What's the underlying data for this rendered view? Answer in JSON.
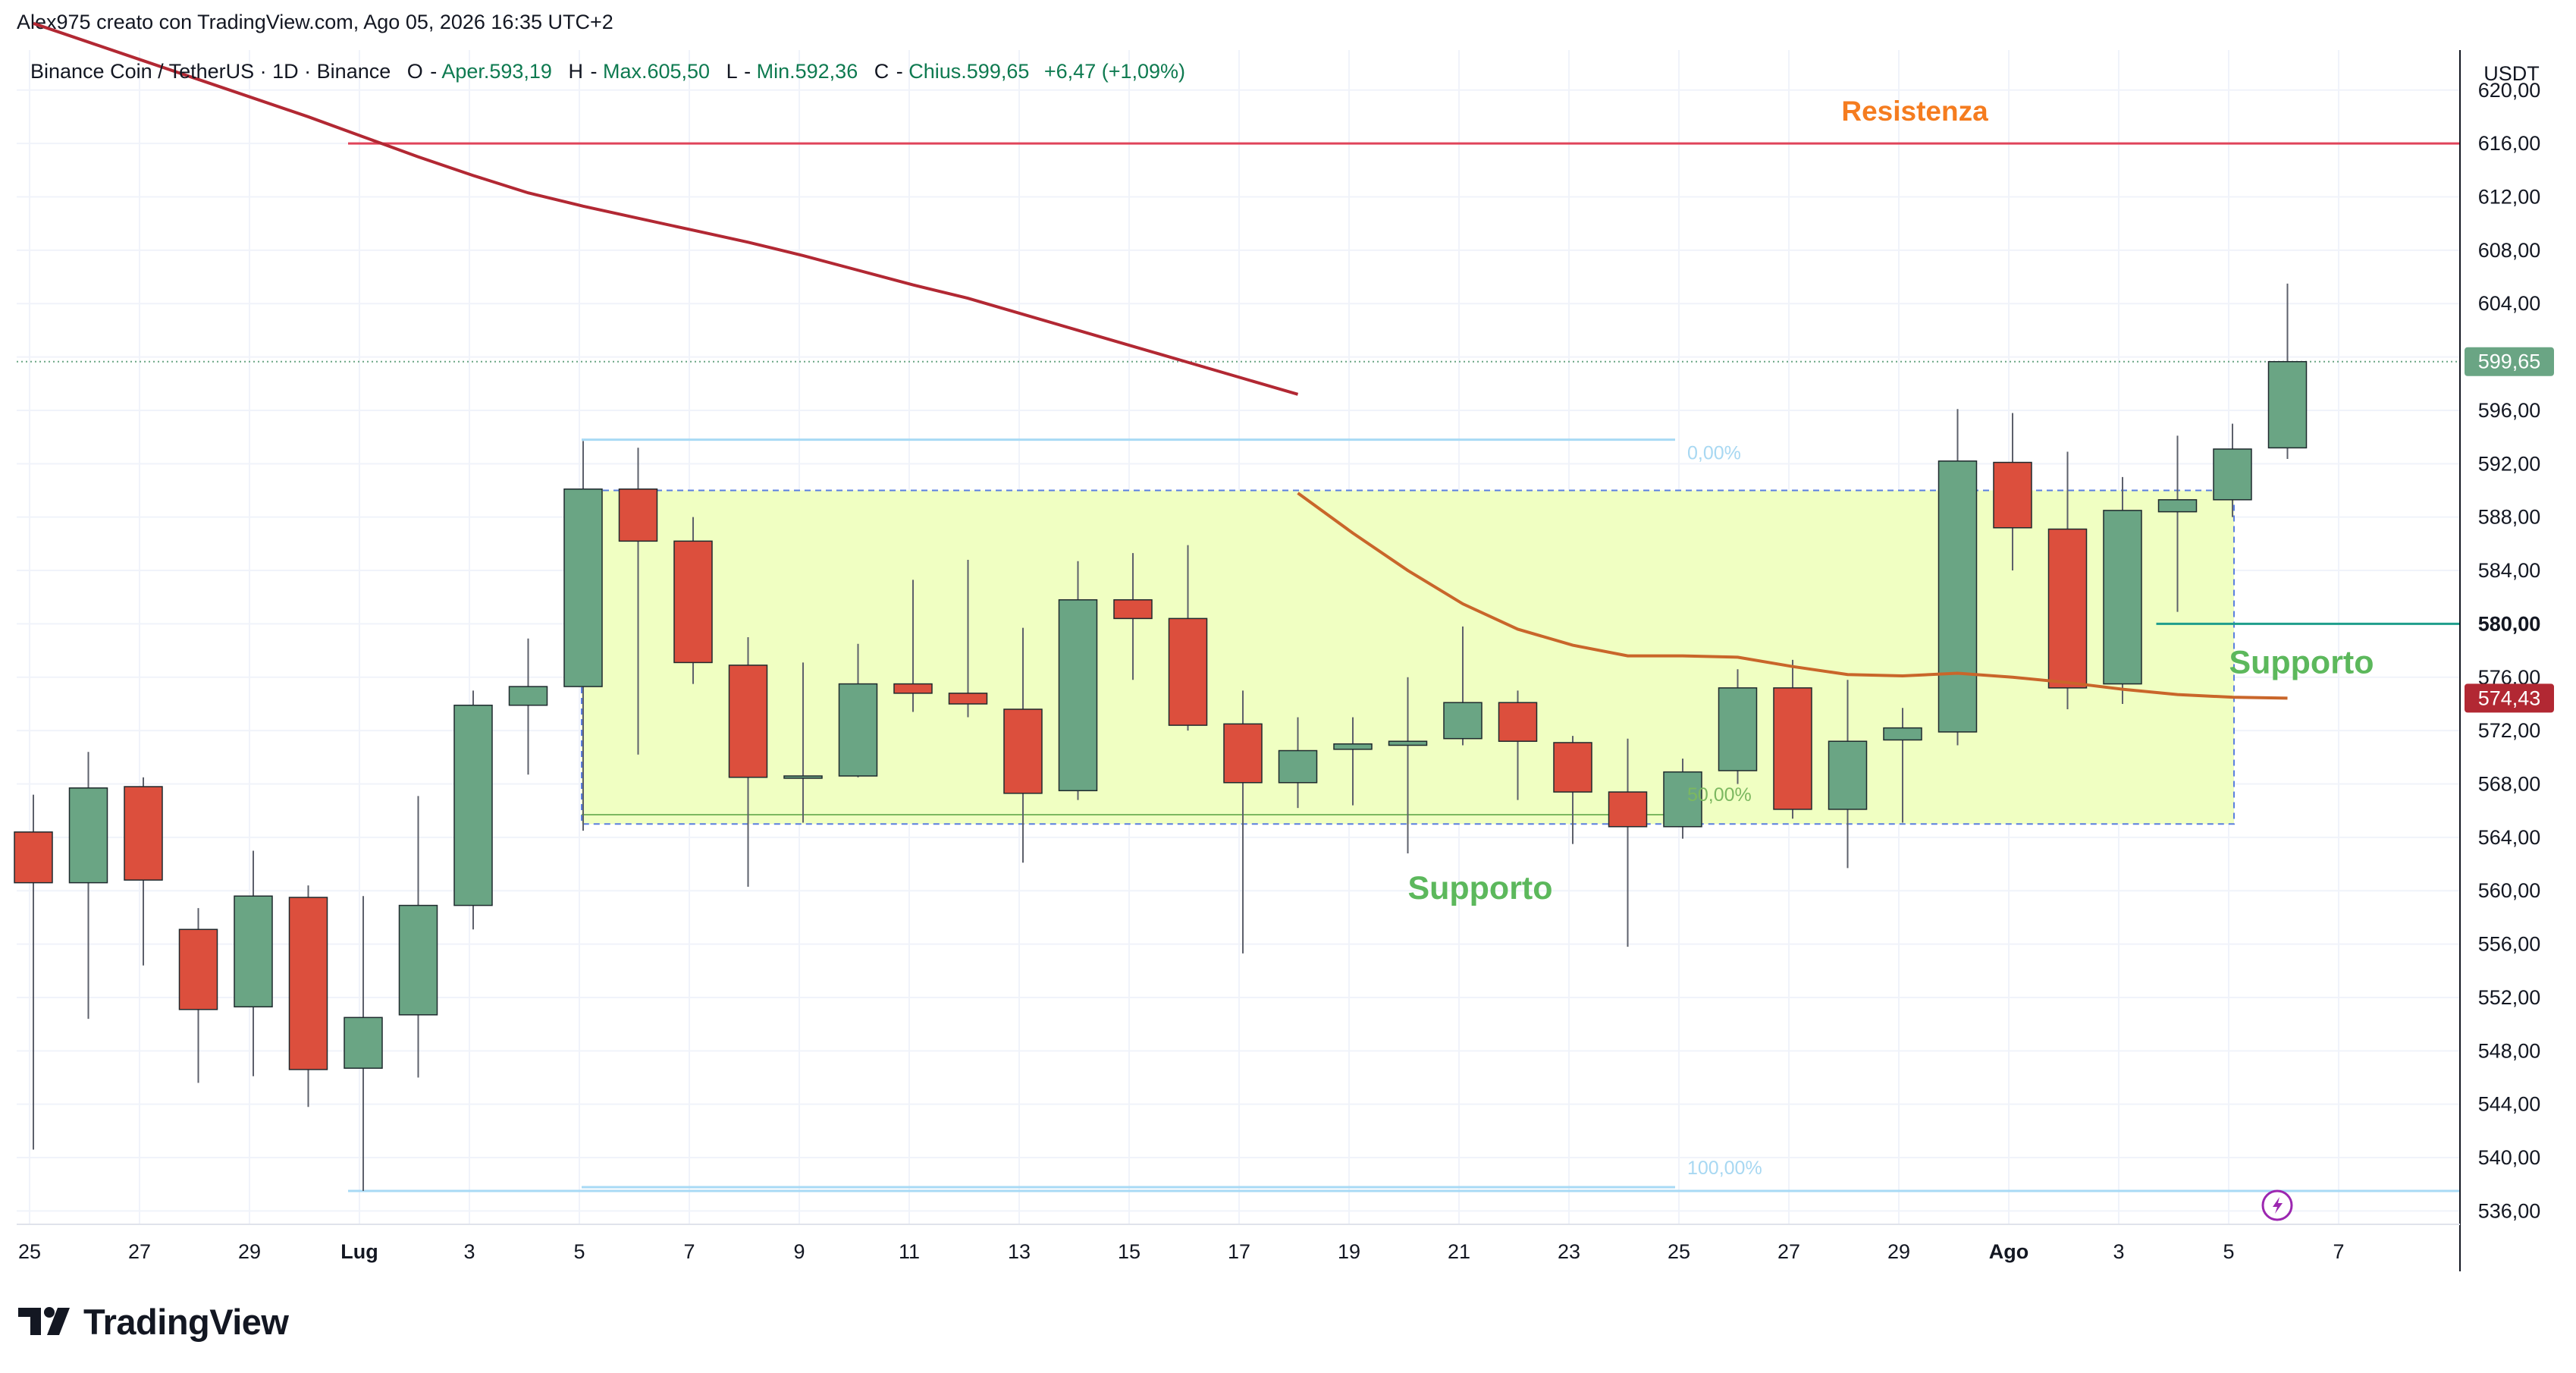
{
  "caption": "Alex975 creato con TradingView.com, Ago 05, 2026 16:35 UTC+2",
  "legend": {
    "symbol": "Binance Coin / TetherUS · 1D · Binance",
    "open_label": "O",
    "open_text": "Aper.593,19",
    "high_label": "H",
    "high_text": "Max.605,50",
    "low_label": "L",
    "low_text": "Min.592,36",
    "close_label": "C",
    "close_text": "Chius.599,65",
    "change_text": "+6,47 (+1,09%)"
  },
  "price_scale": {
    "currency": "USDT",
    "ticks": [
      "620,00",
      "616,00",
      "612,00",
      "608,00",
      "604,00",
      "600,00",
      "596,00",
      "592,00",
      "588,00",
      "584,00",
      "580,00",
      "576,00",
      "572,00",
      "568,00",
      "564,00",
      "560,00",
      "556,00",
      "552,00",
      "548,00",
      "544,00",
      "540,00",
      "536,00"
    ]
  },
  "time_scale": {
    "labels": [
      "25",
      "27",
      "29",
      "Lug",
      "3",
      "5",
      "7",
      "9",
      "11",
      "13",
      "15",
      "17",
      "19",
      "21",
      "23",
      "25",
      "27",
      "29",
      "Ago",
      "3",
      "5",
      "7"
    ]
  },
  "badges": {
    "last_price": "599,65",
    "ma_value": "574,43",
    "support_level": "580,00"
  },
  "annotations": {
    "resistance": "Resistenza",
    "support_low": "Supporto",
    "support_right": "Supporto",
    "fib_0": "0,00%",
    "fib_50": "50,00%",
    "fib_100": "100,00%"
  },
  "brand": "TradingView",
  "colors": {
    "up": "#6aa584",
    "down": "#dc4f3d",
    "wick": "#5d606b",
    "ma": "#b22833",
    "ma_tail": "#c9662a",
    "resistance_line": "#e0445a",
    "resistance_text": "#f57c1f",
    "support_text": "#5cb85c",
    "zone_fill": "#f0ffc2",
    "zone_border": "#5a7fe0",
    "fib_line": "#a8daf5",
    "support_line": "#1e9e8c",
    "last_price_bg": "#6aa584",
    "ma_badge_bg": "#b22833"
  },
  "chart_data": {
    "type": "candlestick",
    "title": "Binance Coin / TetherUS · 1D · Binance",
    "x": [
      "Giu 25",
      "Giu 26",
      "Giu 27",
      "Giu 28",
      "Giu 29",
      "Giu 30",
      "Lug 1",
      "Lug 2",
      "Lug 3",
      "Lug 4",
      "Lug 5",
      "Lug 6",
      "Lug 7",
      "Lug 8",
      "Lug 9",
      "Lug 10",
      "Lug 11",
      "Lug 12",
      "Lug 13",
      "Lug 14",
      "Lug 15",
      "Lug 16",
      "Lug 17",
      "Lug 18",
      "Lug 19",
      "Lug 20",
      "Lug 21",
      "Lug 22",
      "Lug 23",
      "Lug 24",
      "Lug 25",
      "Lug 26",
      "Lug 27",
      "Lug 28",
      "Lug 29",
      "Lug 30",
      "Lug 31",
      "Ago 1",
      "Ago 2",
      "Ago 3",
      "Ago 4",
      "Ago 5"
    ],
    "series": [
      {
        "values": [
          [
            564.4,
            567.2,
            540.6,
            560.6
          ],
          [
            560.6,
            570.4,
            550.4,
            567.7
          ],
          [
            567.8,
            568.5,
            554.4,
            560.8
          ],
          [
            557.1,
            558.7,
            545.6,
            551.1
          ],
          [
            551.3,
            563.0,
            546.1,
            559.6
          ],
          [
            559.5,
            560.4,
            543.8,
            546.6
          ],
          [
            546.7,
            559.6,
            537.5,
            550.5
          ],
          [
            550.7,
            567.1,
            546.0,
            558.9
          ],
          [
            558.9,
            575.0,
            557.1,
            573.9
          ],
          [
            573.9,
            578.9,
            568.7,
            575.3
          ],
          [
            575.3,
            593.7,
            564.5,
            590.1
          ],
          [
            590.1,
            593.2,
            570.2,
            586.2
          ],
          [
            586.2,
            588.0,
            575.5,
            577.1
          ],
          [
            576.9,
            579.0,
            560.3,
            568.5
          ],
          [
            568.6,
            577.1,
            565.1,
            568.6
          ],
          [
            568.6,
            578.5,
            568.5,
            575.5
          ],
          [
            575.5,
            583.3,
            573.4,
            574.8
          ],
          [
            574.8,
            584.8,
            573.0,
            574.0
          ],
          [
            573.6,
            579.7,
            562.1,
            567.3
          ],
          [
            567.5,
            584.7,
            566.8,
            581.8
          ],
          [
            581.8,
            585.3,
            575.8,
            580.4
          ],
          [
            580.4,
            585.9,
            572.0,
            572.4
          ],
          [
            572.5,
            575.0,
            555.3,
            568.1
          ],
          [
            568.1,
            573.0,
            566.2,
            570.5
          ],
          [
            570.6,
            573.0,
            566.4,
            571.0
          ],
          [
            570.9,
            576.0,
            562.8,
            571.2
          ],
          [
            571.4,
            579.8,
            570.9,
            574.1
          ],
          [
            574.1,
            575.0,
            566.8,
            571.2
          ],
          [
            571.1,
            571.6,
            563.5,
            567.4
          ],
          [
            567.4,
            571.4,
            555.8,
            564.8
          ],
          [
            564.8,
            569.9,
            563.9,
            568.9
          ],
          [
            569.0,
            576.6,
            568.0,
            575.2
          ],
          [
            575.2,
            577.3,
            565.4,
            566.1
          ],
          [
            566.1,
            575.8,
            561.7,
            571.2
          ],
          [
            571.3,
            573.7,
            565.1,
            572.2
          ],
          [
            571.9,
            596.1,
            570.9,
            592.2
          ],
          [
            592.1,
            595.8,
            584.0,
            587.2
          ],
          [
            587.1,
            592.9,
            573.6,
            575.2
          ],
          [
            575.5,
            591.0,
            574.0,
            588.5
          ],
          [
            588.4,
            594.1,
            580.9,
            589.3
          ],
          [
            589.3,
            595.0,
            588.0,
            593.1
          ],
          [
            593.19,
            605.5,
            592.36,
            599.65
          ]
        ]
      },
      {
        "values": [
          625.0,
          623.6,
          622.2,
          620.8,
          619.4,
          618.0,
          616.5,
          615.0,
          613.6,
          612.3,
          611.3,
          610.4,
          609.5,
          608.6,
          607.6,
          606.5,
          605.4,
          604.4,
          603.2,
          602.0,
          600.8,
          599.6,
          598.4,
          597.2,
          594.6,
          592.1,
          589.6,
          587.2,
          586.2,
          585.4,
          585.4,
          585.1,
          584.6,
          584.1,
          583.5,
          583.0,
          582.4,
          581.8,
          581.2,
          580.6,
          580.0,
          579.5
        ]
      },
      {
        "values": [
          null,
          null,
          null,
          null,
          null,
          null,
          null,
          null,
          null,
          null,
          null,
          null,
          null,
          null,
          null,
          null,
          null,
          null,
          null,
          null,
          null,
          null,
          null,
          589.8,
          586.8,
          584.0,
          581.5,
          579.6,
          578.4,
          577.6,
          577.6,
          577.5,
          576.8,
          576.2,
          576.1,
          576.3,
          576.0,
          575.6,
          575.1,
          574.7,
          574.5,
          574.43
        ]
      }
    ],
    "ylim": [
      535,
      623
    ],
    "levels": {
      "resistance": 616.0,
      "support_zone": [
        565.0,
        590.0
      ],
      "support_line": 580.0,
      "fib_0": 593.8,
      "fib_50": 565.7,
      "fib_100": 537.5
    },
    "grid": true
  }
}
